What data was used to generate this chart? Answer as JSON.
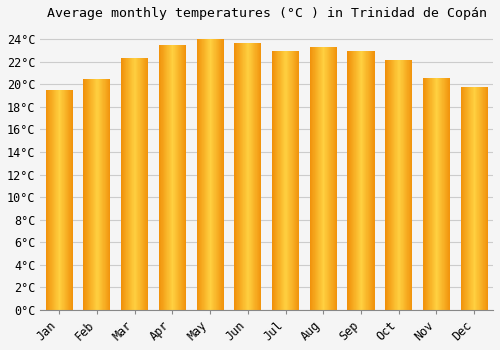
{
  "title": "Average monthly temperatures (°C ) in Trinidad de Copán",
  "months": [
    "Jan",
    "Feb",
    "Mar",
    "Apr",
    "May",
    "Jun",
    "Jul",
    "Aug",
    "Sep",
    "Oct",
    "Nov",
    "Dec"
  ],
  "values": [
    19.5,
    20.5,
    22.3,
    23.5,
    24.0,
    23.7,
    23.0,
    23.3,
    23.0,
    22.2,
    20.6,
    19.8
  ],
  "bar_color_center": "#FFD040",
  "bar_color_edge": "#F0900A",
  "ylim": [
    0,
    25
  ],
  "ytick_step": 2,
  "background_color": "#f5f5f5",
  "grid_color": "#cccccc",
  "title_fontsize": 9.5,
  "tick_fontsize": 8.5,
  "font_family": "monospace"
}
